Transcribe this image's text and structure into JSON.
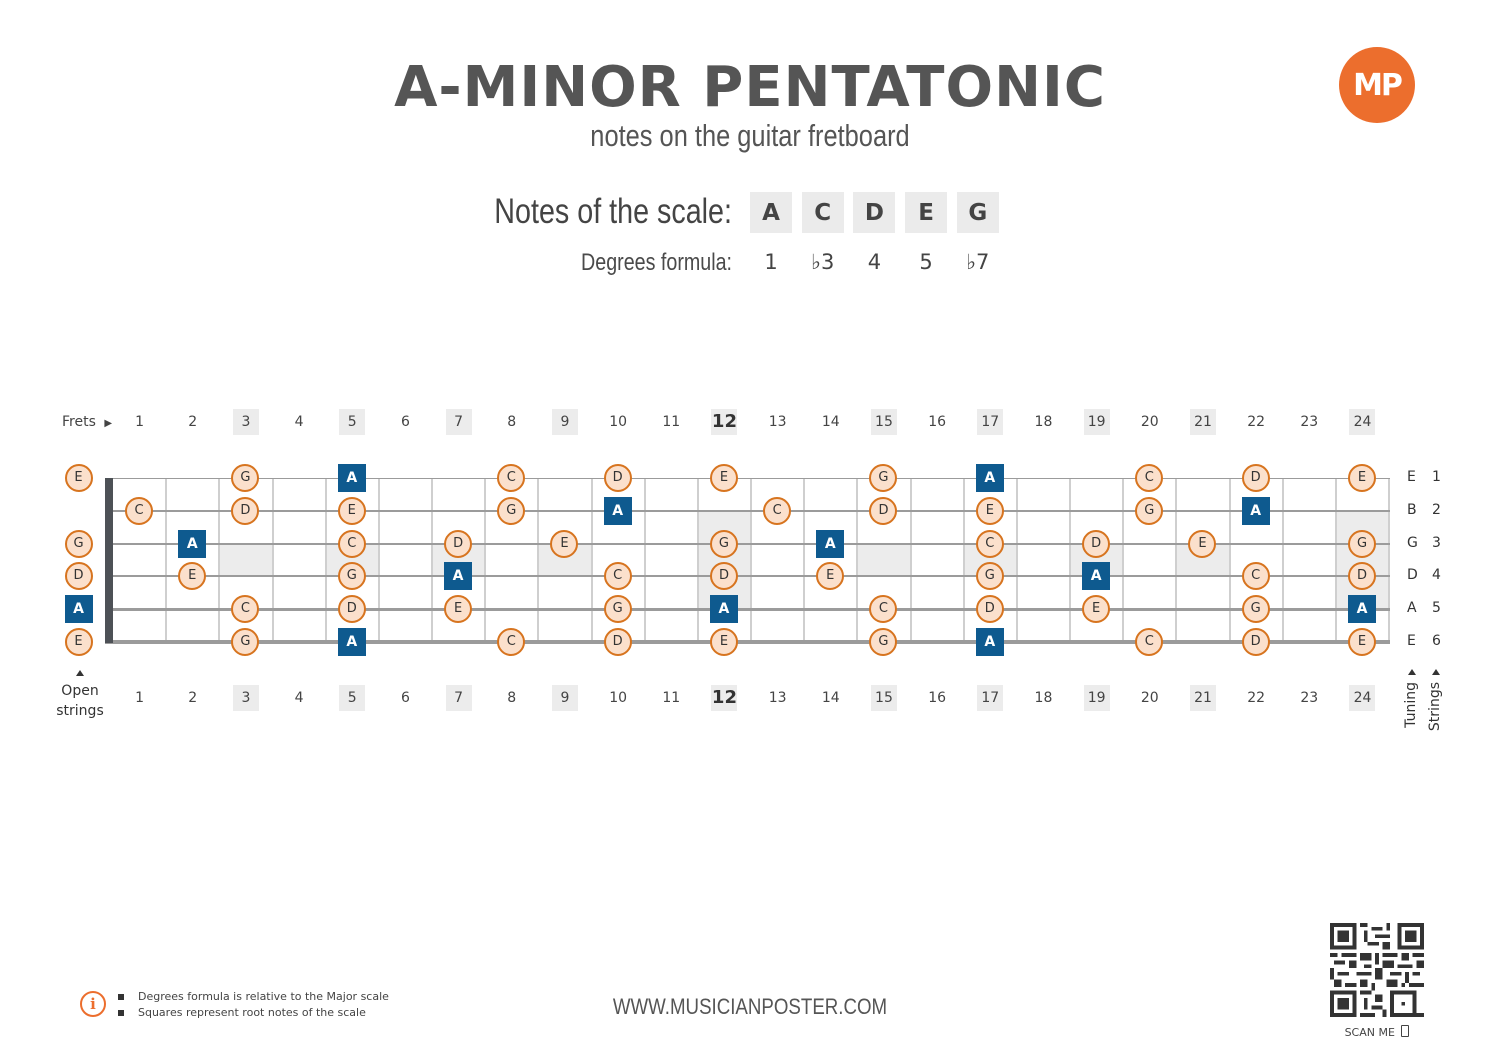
{
  "header": {
    "title": "A-MINOR PENTATONIC",
    "subtitle": "notes on the guitar fretboard",
    "logo_text": "MP",
    "brand_color": "#ec6e2d"
  },
  "scale": {
    "notes_label": "Notes of the scale:",
    "notes": [
      "A",
      "C",
      "D",
      "E",
      "G"
    ],
    "degrees_label": "Degrees formula:",
    "degrees": [
      "1",
      "♭3",
      "4",
      "5",
      "♭7"
    ]
  },
  "fretboard": {
    "frets_label": "Frets",
    "fret_numbers": [
      "1",
      "2",
      "3",
      "4",
      "5",
      "6",
      "7",
      "8",
      "9",
      "10",
      "11",
      "12",
      "13",
      "14",
      "15",
      "16",
      "17",
      "18",
      "19",
      "20",
      "21",
      "22",
      "23",
      "24"
    ],
    "marked_frets": [
      3,
      5,
      7,
      9,
      12,
      15,
      17,
      19,
      21,
      24
    ],
    "open_strings_label": "Open strings",
    "tuning_label": "Tuning",
    "strings_label": "Strings",
    "tuning": [
      {
        "note": "E",
        "string": "1"
      },
      {
        "note": "B",
        "string": "2"
      },
      {
        "note": "G",
        "string": "3"
      },
      {
        "note": "D",
        "string": "4"
      },
      {
        "note": "A",
        "string": "5"
      },
      {
        "note": "E",
        "string": "6"
      }
    ],
    "root_note": "A",
    "root_color": "#0e5a8f",
    "note_fill": "#fbe0cc",
    "note_border": "#d7741f",
    "positions": [
      {
        "string": 1,
        "fret": 0,
        "note": "E"
      },
      {
        "string": 1,
        "fret": 3,
        "note": "G"
      },
      {
        "string": 1,
        "fret": 5,
        "note": "A"
      },
      {
        "string": 1,
        "fret": 8,
        "note": "C"
      },
      {
        "string": 1,
        "fret": 10,
        "note": "D"
      },
      {
        "string": 1,
        "fret": 12,
        "note": "E"
      },
      {
        "string": 1,
        "fret": 15,
        "note": "G"
      },
      {
        "string": 1,
        "fret": 17,
        "note": "A"
      },
      {
        "string": 1,
        "fret": 20,
        "note": "C"
      },
      {
        "string": 1,
        "fret": 22,
        "note": "D"
      },
      {
        "string": 1,
        "fret": 24,
        "note": "E"
      },
      {
        "string": 2,
        "fret": 1,
        "note": "C"
      },
      {
        "string": 2,
        "fret": 3,
        "note": "D"
      },
      {
        "string": 2,
        "fret": 5,
        "note": "E"
      },
      {
        "string": 2,
        "fret": 8,
        "note": "G"
      },
      {
        "string": 2,
        "fret": 10,
        "note": "A"
      },
      {
        "string": 2,
        "fret": 13,
        "note": "C"
      },
      {
        "string": 2,
        "fret": 15,
        "note": "D"
      },
      {
        "string": 2,
        "fret": 17,
        "note": "E"
      },
      {
        "string": 2,
        "fret": 20,
        "note": "G"
      },
      {
        "string": 2,
        "fret": 22,
        "note": "A"
      },
      {
        "string": 3,
        "fret": 0,
        "note": "G"
      },
      {
        "string": 3,
        "fret": 2,
        "note": "A"
      },
      {
        "string": 3,
        "fret": 5,
        "note": "C"
      },
      {
        "string": 3,
        "fret": 7,
        "note": "D"
      },
      {
        "string": 3,
        "fret": 9,
        "note": "E"
      },
      {
        "string": 3,
        "fret": 12,
        "note": "G"
      },
      {
        "string": 3,
        "fret": 14,
        "note": "A"
      },
      {
        "string": 3,
        "fret": 17,
        "note": "C"
      },
      {
        "string": 3,
        "fret": 19,
        "note": "D"
      },
      {
        "string": 3,
        "fret": 21,
        "note": "E"
      },
      {
        "string": 3,
        "fret": 24,
        "note": "G"
      },
      {
        "string": 4,
        "fret": 0,
        "note": "D"
      },
      {
        "string": 4,
        "fret": 2,
        "note": "E"
      },
      {
        "string": 4,
        "fret": 5,
        "note": "G"
      },
      {
        "string": 4,
        "fret": 7,
        "note": "A"
      },
      {
        "string": 4,
        "fret": 10,
        "note": "C"
      },
      {
        "string": 4,
        "fret": 12,
        "note": "D"
      },
      {
        "string": 4,
        "fret": 14,
        "note": "E"
      },
      {
        "string": 4,
        "fret": 17,
        "note": "G"
      },
      {
        "string": 4,
        "fret": 19,
        "note": "A"
      },
      {
        "string": 4,
        "fret": 22,
        "note": "C"
      },
      {
        "string": 4,
        "fret": 24,
        "note": "D"
      },
      {
        "string": 5,
        "fret": 0,
        "note": "A"
      },
      {
        "string": 5,
        "fret": 3,
        "note": "C"
      },
      {
        "string": 5,
        "fret": 5,
        "note": "D"
      },
      {
        "string": 5,
        "fret": 7,
        "note": "E"
      },
      {
        "string": 5,
        "fret": 10,
        "note": "G"
      },
      {
        "string": 5,
        "fret": 12,
        "note": "A"
      },
      {
        "string": 5,
        "fret": 15,
        "note": "C"
      },
      {
        "string": 5,
        "fret": 17,
        "note": "D"
      },
      {
        "string": 5,
        "fret": 19,
        "note": "E"
      },
      {
        "string": 5,
        "fret": 22,
        "note": "G"
      },
      {
        "string": 5,
        "fret": 24,
        "note": "A"
      },
      {
        "string": 6,
        "fret": 0,
        "note": "E"
      },
      {
        "string": 6,
        "fret": 3,
        "note": "G"
      },
      {
        "string": 6,
        "fret": 5,
        "note": "A"
      },
      {
        "string": 6,
        "fret": 8,
        "note": "C"
      },
      {
        "string": 6,
        "fret": 10,
        "note": "D"
      },
      {
        "string": 6,
        "fret": 12,
        "note": "E"
      },
      {
        "string": 6,
        "fret": 15,
        "note": "G"
      },
      {
        "string": 6,
        "fret": 17,
        "note": "A"
      },
      {
        "string": 6,
        "fret": 20,
        "note": "C"
      },
      {
        "string": 6,
        "fret": 22,
        "note": "D"
      },
      {
        "string": 6,
        "fret": 24,
        "note": "E"
      }
    ]
  },
  "footer": {
    "info_icon": "info-icon",
    "info_lines": [
      "Degrees formula is relative to the Major scale",
      "Squares represent root notes of the scale"
    ],
    "website": "WWW.MUSICIANPOSTER.COM",
    "scan_label": "SCAN ME",
    "scan_icon": "phone-icon"
  }
}
